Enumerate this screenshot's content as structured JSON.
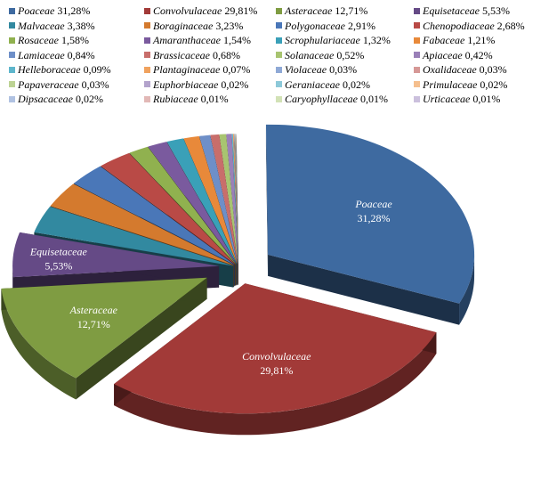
{
  "chart_data": {
    "type": "pie",
    "three_d": true,
    "exploded": true,
    "legend_position": "top",
    "slices": [
      {
        "name": "Poaceae",
        "value": 31.28,
        "label": "31,28%",
        "color": "#3e6aa0"
      },
      {
        "name": "Convolvulaceae",
        "value": 29.81,
        "label": "29,81%",
        "color": "#a23a38"
      },
      {
        "name": "Asteraceae",
        "value": 12.71,
        "label": "12,71%",
        "color": "#7f9c42"
      },
      {
        "name": "Equisetaceae",
        "value": 5.53,
        "label": "5,53%",
        "color": "#654a86"
      },
      {
        "name": "Malvaceae",
        "value": 3.38,
        "label": "3,38%",
        "color": "#3289a0"
      },
      {
        "name": "Boraginaceae",
        "value": 3.23,
        "label": "3,23%",
        "color": "#d47a2e"
      },
      {
        "name": "Polygonaceae",
        "value": 2.91,
        "label": "2,91%",
        "color": "#4a77b8"
      },
      {
        "name": "Chenopodiaceae",
        "value": 2.68,
        "label": "2,68%",
        "color": "#b94a46"
      },
      {
        "name": "Rosaceae",
        "value": 1.58,
        "label": "1,58%",
        "color": "#90b14f"
      },
      {
        "name": "Amaranthaceae",
        "value": 1.54,
        "label": "1,54%",
        "color": "#7a5a9e"
      },
      {
        "name": "Scrophulariaceae",
        "value": 1.32,
        "label": "1,32%",
        "color": "#3aa0b8"
      },
      {
        "name": "Fabaceae",
        "value": 1.21,
        "label": "1,21%",
        "color": "#e8893a"
      },
      {
        "name": "Lamiaceae",
        "value": 0.84,
        "label": "0,84%",
        "color": "#6e8fc8"
      },
      {
        "name": "Brassicaceae",
        "value": 0.68,
        "label": "0,68%",
        "color": "#c86e6b"
      },
      {
        "name": "Solanaceae",
        "value": 0.52,
        "label": "0,52%",
        "color": "#a8c470"
      },
      {
        "name": "Apiaceae",
        "value": 0.42,
        "label": "0,42%",
        "color": "#9a80b8"
      },
      {
        "name": "Helleboraceae",
        "value": 0.09,
        "label": "0,09%",
        "color": "#5eb6cc"
      },
      {
        "name": "Plantaginaceae",
        "value": 0.07,
        "label": "0,07%",
        "color": "#f0a25e"
      },
      {
        "name": "Violaceae",
        "value": 0.03,
        "label": "0,03%",
        "color": "#8fa9d6"
      },
      {
        "name": "Oxalidaceae",
        "value": 0.03,
        "label": "0,03%",
        "color": "#d69896"
      },
      {
        "name": "Papaveraceae",
        "value": 0.03,
        "label": "0,03%",
        "color": "#bdd394"
      },
      {
        "name": "Euphorbiaceae",
        "value": 0.02,
        "label": "0,02%",
        "color": "#b3a3cc"
      },
      {
        "name": "Geraniaceae",
        "value": 0.02,
        "label": "0,02%",
        "color": "#8dc9d9"
      },
      {
        "name": "Primulaceae",
        "value": 0.02,
        "label": "0,02%",
        "color": "#f5bf8e"
      },
      {
        "name": "Dipsacaceae",
        "value": 0.02,
        "label": "0,02%",
        "color": "#b0c2e2"
      },
      {
        "name": "Rubiaceae",
        "value": 0.01,
        "label": "0,01%",
        "color": "#e2b8b6"
      },
      {
        "name": "Caryophyllaceae",
        "value": 0.01,
        "label": "0,01%",
        "color": "#d2e2b6"
      },
      {
        "name": "Urticaceae",
        "value": 0.01,
        "label": "0,01%",
        "color": "#cbc0dd"
      }
    ],
    "labeled_slices": [
      "Poaceae",
      "Convolvulaceae",
      "Asteraceae",
      "Equisetaceae"
    ]
  }
}
